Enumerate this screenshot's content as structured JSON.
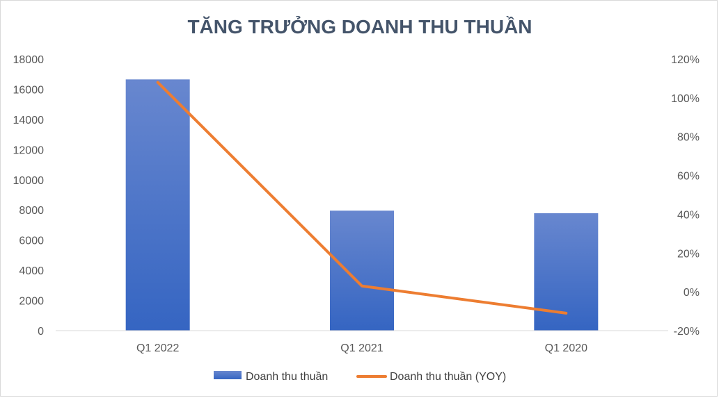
{
  "chart_data": {
    "type": "bar",
    "title": "TĂNG TRƯỞNG DOANH THU THUẦN",
    "categories": [
      "Q1 2022",
      "Q1 2021",
      "Q1 2020"
    ],
    "series": [
      {
        "name": "Doanh thu thuần",
        "type": "bar",
        "axis": "left",
        "values": [
          16650,
          7950,
          7780
        ],
        "color": "#4472c4"
      },
      {
        "name": "Doanh thu thuần (YOY)",
        "type": "line",
        "axis": "right",
        "values": [
          108,
          3,
          -11
        ],
        "color": "#ed7d31"
      }
    ],
    "y_left": {
      "min": 0,
      "max": 18000,
      "step": 2000,
      "ticks": [
        "0",
        "2000",
        "4000",
        "6000",
        "8000",
        "10000",
        "12000",
        "14000",
        "16000",
        "18000"
      ]
    },
    "y_right": {
      "min": -20,
      "max": 120,
      "step": 20,
      "ticks": [
        "-20%",
        "0%",
        "20%",
        "40%",
        "60%",
        "80%",
        "100%",
        "120%"
      ]
    },
    "grid": false,
    "legend": "bottom"
  }
}
